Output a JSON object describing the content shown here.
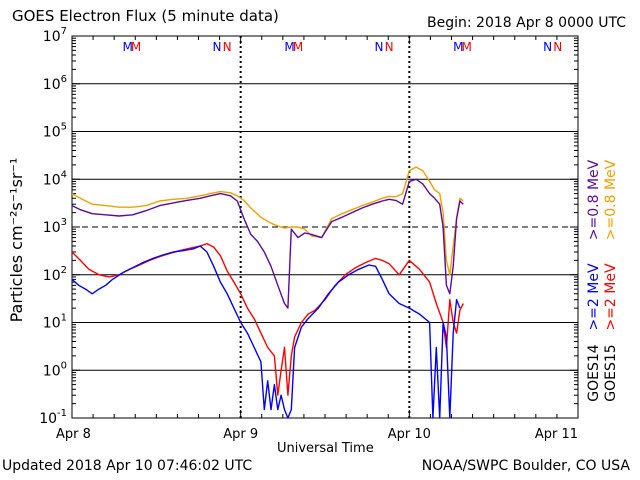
{
  "header": {
    "title": "GOES Electron Flux (5 minute data)",
    "begin": "Begin: 2018 Apr 8 0000 UTC"
  },
  "footer": {
    "updated": "Updated 2018 Apr 10 07:46:02 UTC",
    "credit": "NOAA/SWPC Boulder, CO USA"
  },
  "colors": {
    "goes14_high": "#0000ff",
    "goes15_high": "#ff0000",
    "goes14_low": "#5a0aa0",
    "goes15_low": "#f0a000",
    "threshold": "#000000"
  },
  "chart_data": {
    "type": "line",
    "title": "GOES Electron Flux (5 minute data)",
    "xlabel": "Universal Time",
    "ylabel": "Particles cm⁻²s⁻¹sr⁻¹",
    "y_scale": "log",
    "ylim": [
      0.1,
      10000000
    ],
    "xlim": [
      0,
      3
    ],
    "x_unit": "days since 2018 Apr 8 0000 UTC",
    "grid": true,
    "threshold": 1000,
    "x_ticks": [
      {
        "x": 0,
        "label": "Apr 8"
      },
      {
        "x": 1,
        "label": "Apr 9"
      },
      {
        "x": 2,
        "label": "Apr 10"
      },
      {
        "x": 3,
        "label": "Apr 11"
      }
    ],
    "y_ticks": [
      {
        "value": 0.1,
        "base": "10",
        "exp": "-1"
      },
      {
        "value": 1,
        "base": "10",
        "exp": "0"
      },
      {
        "value": 10,
        "base": "10",
        "exp": "1"
      },
      {
        "value": 100,
        "base": "10",
        "exp": "2"
      },
      {
        "value": 1000,
        "base": "10",
        "exp": "3"
      },
      {
        "value": 10000,
        "base": "10",
        "exp": "4"
      },
      {
        "value": 100000,
        "base": "10",
        "exp": "5"
      },
      {
        "value": 1000000,
        "base": "10",
        "exp": "6"
      },
      {
        "value": 10000000,
        "base": "10",
        "exp": "7"
      }
    ],
    "midnight_markers": [
      1,
      2
    ],
    "orbit_markers": [
      {
        "x": 0.33,
        "label": "M",
        "color": "#0000ff"
      },
      {
        "x": 0.38,
        "label": "M",
        "color": "#ff0000"
      },
      {
        "x": 0.86,
        "label": "N",
        "color": "#0000ff"
      },
      {
        "x": 0.92,
        "label": "N",
        "color": "#ff0000"
      },
      {
        "x": 1.29,
        "label": "M",
        "color": "#0000ff"
      },
      {
        "x": 1.34,
        "label": "M",
        "color": "#ff0000"
      },
      {
        "x": 1.82,
        "label": "N",
        "color": "#0000ff"
      },
      {
        "x": 1.88,
        "label": "N",
        "color": "#ff0000"
      },
      {
        "x": 2.29,
        "label": "M",
        "color": "#0000ff"
      },
      {
        "x": 2.34,
        "label": "M",
        "color": "#ff0000"
      },
      {
        "x": 2.82,
        "label": "N",
        "color": "#0000ff"
      },
      {
        "x": 2.88,
        "label": "N",
        "color": "#ff0000"
      }
    ],
    "legend": [
      {
        "label": ">=0.8 MeV",
        "color": "#f0a000"
      },
      {
        "label": ">=0.8 MeV",
        "color": "#5a0aa0"
      },
      {
        "label": ">=2 MeV",
        "color": "#ff0000"
      },
      {
        "label": ">=2 MeV",
        "color": "#0000ff"
      },
      {
        "label": "GOES15",
        "color": "#000000"
      },
      {
        "label": "GOES14",
        "color": "#000000"
      }
    ],
    "series": [
      {
        "name": "GOES15 >=0.8 MeV",
        "color": "#f0a000",
        "x": [
          0,
          0.05,
          0.12,
          0.2,
          0.28,
          0.36,
          0.44,
          0.52,
          0.6,
          0.68,
          0.76,
          0.82,
          0.88,
          0.94,
          0.98,
          1.02,
          1.06,
          1.12,
          1.18,
          1.22,
          1.26,
          1.3,
          1.34,
          1.38,
          1.42,
          1.48,
          1.54,
          1.6,
          1.66,
          1.72,
          1.78,
          1.84,
          1.88,
          1.92,
          1.96,
          2,
          2.04,
          2.08,
          2.12,
          2.15,
          2.18,
          2.2,
          2.22,
          2.24,
          2.26,
          2.28,
          2.3,
          2.32
        ],
        "values": [
          5000,
          4000,
          3000,
          2800,
          2600,
          2600,
          2800,
          3500,
          3800,
          4000,
          4500,
          5000,
          5500,
          5200,
          4500,
          3600,
          2500,
          1600,
          1200,
          1050,
          950,
          1000,
          1000,
          900,
          650,
          600,
          1500,
          1900,
          2300,
          2800,
          3300,
          4000,
          4400,
          4300,
          5000,
          15000,
          18000,
          15000,
          9000,
          6000,
          5000,
          2000,
          200,
          100,
          400,
          1500,
          4000,
          3500
        ]
      },
      {
        "name": "GOES14 >=0.8 MeV",
        "color": "#5a0aa0",
        "x": [
          0,
          0.05,
          0.12,
          0.2,
          0.28,
          0.36,
          0.44,
          0.52,
          0.6,
          0.68,
          0.76,
          0.82,
          0.88,
          0.94,
          0.98,
          1.02,
          1.06,
          1.1,
          1.14,
          1.18,
          1.22,
          1.26,
          1.28,
          1.3,
          1.34,
          1.38,
          1.42,
          1.48,
          1.54,
          1.6,
          1.66,
          1.72,
          1.78,
          1.84,
          1.88,
          1.92,
          1.96,
          2,
          2.04,
          2.08,
          2.12,
          2.15,
          2.18,
          2.2,
          2.22,
          2.24,
          2.26,
          2.28,
          2.3,
          2.32
        ],
        "values": [
          2800,
          2300,
          1900,
          1800,
          1700,
          1800,
          2200,
          2800,
          3200,
          3600,
          4000,
          4500,
          5000,
          4500,
          3500,
          1500,
          700,
          500,
          300,
          150,
          60,
          25,
          20,
          900,
          600,
          750,
          700,
          600,
          1300,
          1600,
          2000,
          2500,
          3000,
          3500,
          3800,
          3600,
          3000,
          9000,
          10000,
          8000,
          5000,
          4000,
          3000,
          1000,
          60,
          40,
          150,
          1500,
          3500,
          3000
        ]
      },
      {
        "name": "GOES15 >=2 MeV",
        "color": "#ff0000",
        "x": [
          0,
          0.05,
          0.1,
          0.16,
          0.22,
          0.28,
          0.34,
          0.4,
          0.46,
          0.52,
          0.58,
          0.64,
          0.7,
          0.76,
          0.8,
          0.84,
          0.88,
          0.92,
          0.96,
          1,
          1.04,
          1.08,
          1.12,
          1.16,
          1.2,
          1.22,
          1.24,
          1.26,
          1.28,
          1.3,
          1.32,
          1.36,
          1.4,
          1.44,
          1.5,
          1.56,
          1.62,
          1.68,
          1.74,
          1.8,
          1.84,
          1.88,
          1.94,
          2,
          2.06,
          2.12,
          2.16,
          2.2,
          2.22,
          2.24,
          2.26,
          2.28,
          2.3,
          2.32
        ],
        "values": [
          300,
          200,
          130,
          100,
          90,
          100,
          130,
          160,
          200,
          240,
          280,
          320,
          360,
          400,
          450,
          380,
          250,
          120,
          70,
          40,
          20,
          12,
          6,
          3,
          2,
          0.3,
          1,
          3,
          0.3,
          2,
          5,
          10,
          15,
          18,
          30,
          60,
          100,
          140,
          180,
          220,
          200,
          170,
          100,
          200,
          130,
          70,
          25,
          10,
          3,
          30,
          10,
          6,
          18,
          25
        ]
      },
      {
        "name": "GOES14 >=2 MeV",
        "color": "#0000ff",
        "x": [
          0,
          0.04,
          0.08,
          0.12,
          0.16,
          0.2,
          0.24,
          0.3,
          0.36,
          0.42,
          0.48,
          0.54,
          0.6,
          0.66,
          0.72,
          0.76,
          0.8,
          0.84,
          0.88,
          0.92,
          0.96,
          1,
          1.04,
          1.08,
          1.12,
          1.14,
          1.16,
          1.18,
          1.2,
          1.22,
          1.24,
          1.26,
          1.28,
          1.3,
          1.32,
          1.36,
          1.4,
          1.46,
          1.52,
          1.58,
          1.64,
          1.7,
          1.76,
          1.8,
          1.84,
          1.88,
          1.94,
          2,
          2.06,
          2.12,
          2.14,
          2.16,
          2.18,
          2.2,
          2.22,
          2.24,
          2.26,
          2.28,
          2.3
        ],
        "values": [
          80,
          60,
          50,
          40,
          50,
          60,
          80,
          110,
          140,
          180,
          220,
          260,
          300,
          320,
          350,
          400,
          300,
          150,
          70,
          40,
          20,
          10,
          6,
          3,
          1.5,
          0.15,
          0.6,
          0.15,
          0.5,
          0.15,
          0.3,
          0.15,
          0.1,
          0.15,
          3,
          8,
          12,
          20,
          40,
          70,
          100,
          130,
          160,
          150,
          80,
          40,
          25,
          20,
          15,
          10,
          0.1,
          3,
          0.1,
          10,
          5,
          0.1,
          6,
          30,
          20
        ]
      }
    ]
  }
}
